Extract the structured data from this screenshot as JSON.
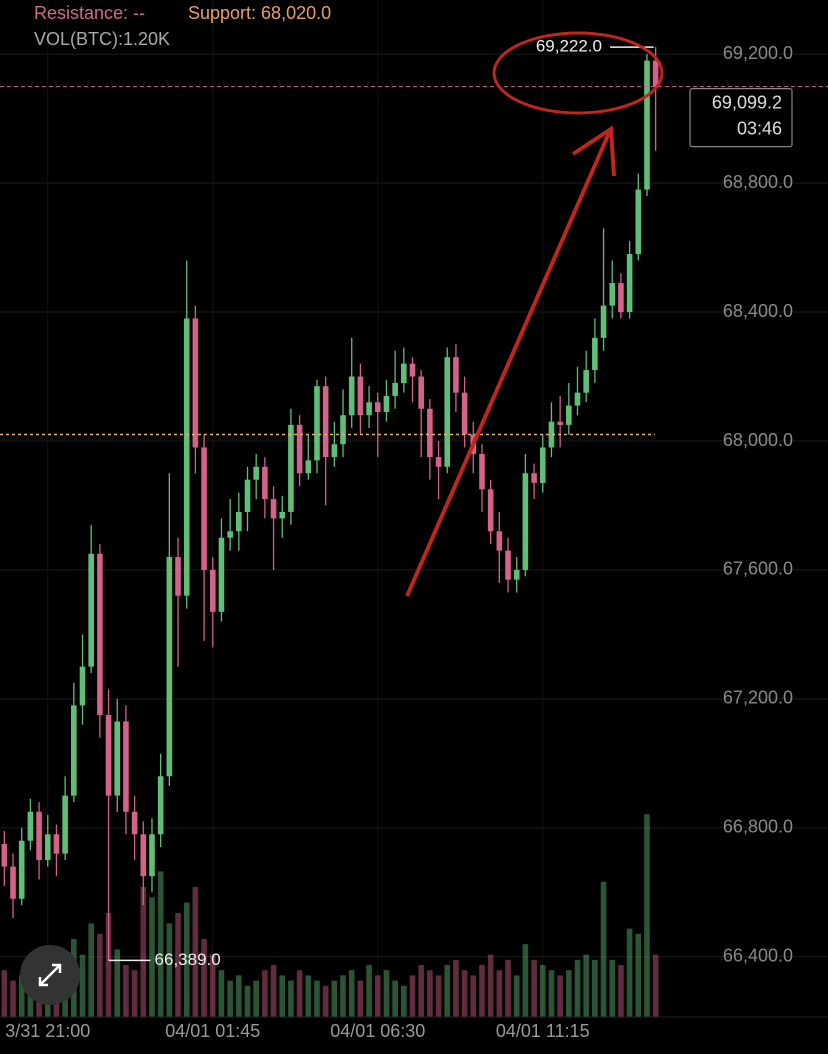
{
  "chart_data": {
    "type": "candlestick",
    "legend": {
      "resistance": "Resistance: --",
      "volume": "VOL(BTC):1.20K"
    },
    "support": {
      "value": 68020,
      "label": "Support: 68,020.0"
    },
    "last_price": {
      "value": 69099.2,
      "label": "69,099.2",
      "countdown": "03:46"
    },
    "high_marker": {
      "index": 75,
      "value": 69222,
      "label": "69,222.0"
    },
    "low_marker": {
      "index": 12,
      "value": 66389,
      "label": "66,389.0"
    },
    "up_color": "#5fbf78",
    "down_color": "#d4628a",
    "xlim": [
      -0.5,
      75.5
    ],
    "xticks": [
      {
        "value": 5,
        "label": "3/31 21:00"
      },
      {
        "value": 24,
        "label": "04/01 01:45"
      },
      {
        "value": 43,
        "label": "04/01 06:30"
      },
      {
        "value": 62,
        "label": "04/01 11:15"
      }
    ],
    "ylim": [
      66266,
      69368
    ],
    "yticks": [
      {
        "value": 66400,
        "label": "66,400.0"
      },
      {
        "value": 66800,
        "label": "66,800.0"
      },
      {
        "value": 67200,
        "label": "67,200.0"
      },
      {
        "value": 67600,
        "label": "67,600.0"
      },
      {
        "value": 68000,
        "label": "68,000.0"
      },
      {
        "value": 68400,
        "label": "68,400.0"
      },
      {
        "value": 68800,
        "label": "68,800.0"
      },
      {
        "value": 69200,
        "label": "69,200.0"
      }
    ],
    "volume_ylim": [
      0,
      5000
    ],
    "open": [
      66750,
      66680,
      66580,
      66760,
      66850,
      66700,
      66780,
      66720,
      66900,
      67180,
      67300,
      67650,
      67150,
      66900,
      67130,
      66850,
      66780,
      66650,
      66780,
      66960,
      67640,
      67520,
      68380,
      67980,
      67600,
      67470,
      67700,
      67720,
      67780,
      67880,
      67920,
      67820,
      67760,
      67780,
      68050,
      67900,
      67940,
      68170,
      67950,
      67990,
      68080,
      68200,
      68080,
      68120,
      68090,
      68140,
      68180,
      68240,
      68200,
      68100,
      67950,
      67920,
      68260,
      68150,
      68020,
      67960,
      67850,
      67720,
      67660,
      67570,
      67600,
      67900,
      67870,
      67980,
      68060,
      68050,
      68110,
      68150,
      68220,
      68320,
      68420,
      68490,
      68400,
      68580,
      68780,
      69180
    ],
    "high": [
      66790,
      66720,
      66800,
      66890,
      66880,
      66840,
      66810,
      66960,
      67250,
      67400,
      67740,
      67680,
      67230,
      67200,
      67180,
      66900,
      66820,
      66830,
      67030,
      67900,
      67700,
      68560,
      68420,
      68020,
      67640,
      67760,
      67820,
      67840,
      67920,
      67960,
      67950,
      67860,
      67830,
      68100,
      68080,
      68020,
      68190,
      68200,
      68060,
      68160,
      68320,
      68240,
      68170,
      68150,
      68190,
      68280,
      68290,
      68260,
      68220,
      68130,
      68000,
      68290,
      68300,
      68200,
      68060,
      67990,
      67880,
      67780,
      67700,
      67640,
      67960,
      67930,
      68020,
      68120,
      68140,
      68180,
      68230,
      68280,
      68380,
      68660,
      68560,
      68520,
      68620,
      68830,
      69200,
      69222
    ],
    "low": [
      66620,
      66520,
      66560,
      66730,
      66640,
      66680,
      66650,
      66700,
      66880,
      67120,
      67280,
      67080,
      66389,
      66850,
      66780,
      66700,
      66560,
      66600,
      66740,
      66930,
      67300,
      67480,
      67900,
      67380,
      67360,
      67440,
      67660,
      67660,
      67720,
      67820,
      67760,
      67600,
      67700,
      67740,
      67860,
      67880,
      67900,
      67800,
      67920,
      67950,
      68040,
      68020,
      68040,
      67950,
      68060,
      68100,
      68150,
      68120,
      67950,
      67880,
      67820,
      67900,
      68090,
      67980,
      67900,
      67780,
      67680,
      67560,
      67530,
      67530,
      67580,
      67820,
      67840,
      67950,
      67980,
      68020,
      68080,
      68120,
      68180,
      68280,
      68380,
      68380,
      68380,
      68560,
      68760,
      68900
    ],
    "close": [
      66680,
      66580,
      66760,
      66850,
      66700,
      66780,
      66720,
      66900,
      67180,
      67300,
      67650,
      67150,
      66900,
      67130,
      66850,
      66780,
      66650,
      66780,
      66960,
      67640,
      67520,
      68380,
      67980,
      67600,
      67470,
      67700,
      67720,
      67780,
      67880,
      67920,
      67820,
      67760,
      67780,
      68050,
      67900,
      67940,
      68170,
      67950,
      67990,
      68080,
      68200,
      68080,
      68120,
      68090,
      68140,
      68180,
      68240,
      68200,
      68100,
      67950,
      67920,
      68260,
      68150,
      68020,
      67960,
      67850,
      67720,
      67660,
      67570,
      67600,
      67900,
      67870,
      67980,
      68060,
      68050,
      68110,
      68150,
      68220,
      68320,
      68420,
      68490,
      68400,
      68580,
      68780,
      69180,
      69099.2
    ],
    "volume": [
      900,
      700,
      800,
      600,
      900,
      700,
      1100,
      800,
      1500,
      1200,
      1800,
      1600,
      2000,
      1300,
      1000,
      900,
      2500,
      2300,
      2800,
      1800,
      2000,
      2200,
      2500,
      1500,
      1200,
      900,
      700,
      800,
      600,
      700,
      900,
      1000,
      800,
      700,
      900,
      800,
      700,
      600,
      700,
      800,
      900,
      700,
      1000,
      800,
      900,
      700,
      600,
      800,
      1000,
      900,
      800,
      1000,
      1100,
      900,
      800,
      1000,
      1200,
      900,
      1100,
      800,
      1400,
      1100,
      1000,
      900,
      800,
      900,
      1100,
      1200,
      1100,
      2600,
      1100,
      1000,
      1700,
      1600,
      3900,
      1200
    ]
  }
}
